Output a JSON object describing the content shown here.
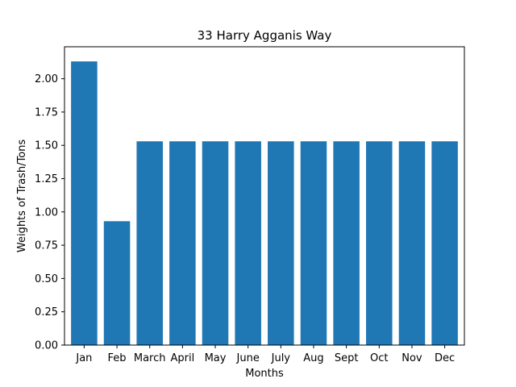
{
  "chart_data": {
    "type": "bar",
    "title": "33 Harry Agganis Way",
    "xlabel": "Months",
    "ylabel": "Weights of Trash/Tons",
    "categories": [
      "Jan",
      "Feb",
      "March",
      "April",
      "May",
      "June",
      "July",
      "Aug",
      "Sept",
      "Oct",
      "Nov",
      "Dec"
    ],
    "values": [
      2.13,
      0.93,
      1.53,
      1.53,
      1.53,
      1.53,
      1.53,
      1.53,
      1.53,
      1.53,
      1.53,
      1.53
    ],
    "ylim": [
      0,
      2.24
    ],
    "yticks": [
      "0.00",
      "0.25",
      "0.50",
      "0.75",
      "1.00",
      "1.25",
      "1.50",
      "1.75",
      "2.00"
    ],
    "bar_color": "#1f77b4",
    "grid": false,
    "legend": "none"
  }
}
